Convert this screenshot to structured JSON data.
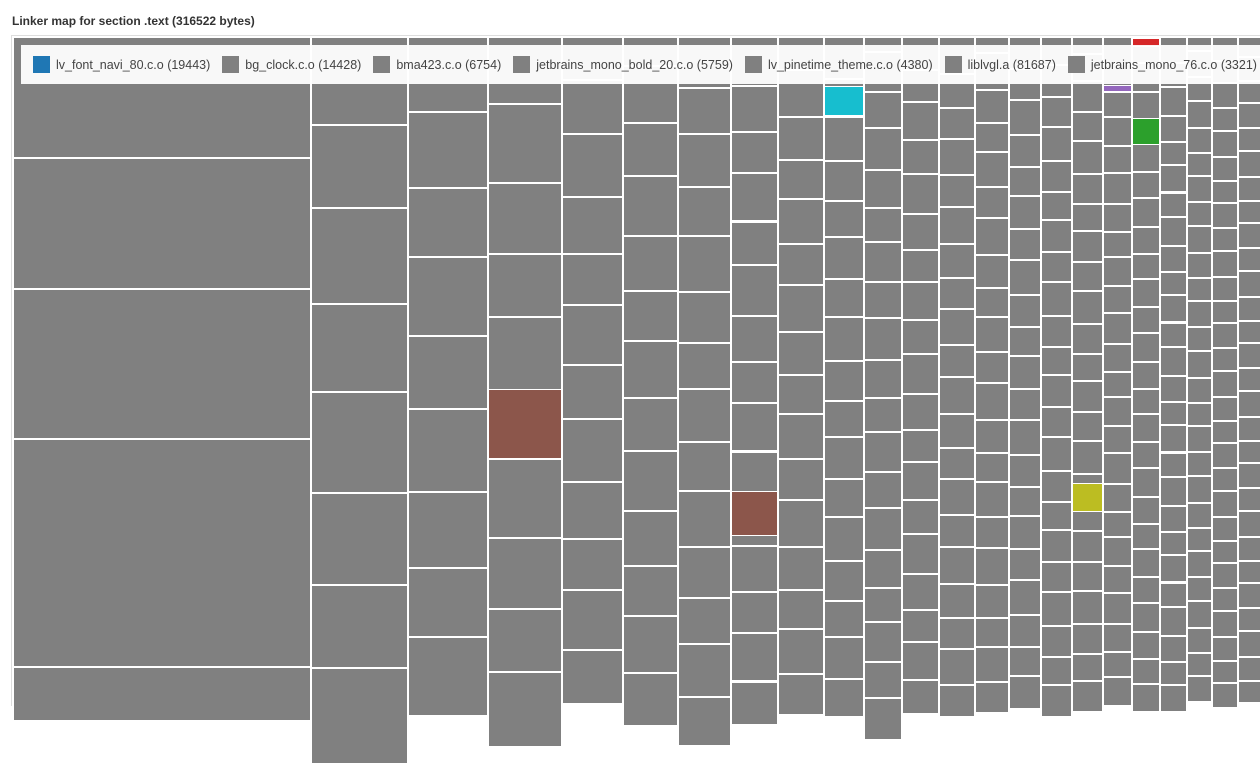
{
  "title": "Linker map for section .text (316522 bytes)",
  "legend": [
    {
      "label": "lv_font_navi_80.c.o (19443)",
      "color": "#1f77b4"
    },
    {
      "label": "bg_clock.c.o (14428)",
      "color": "#808080"
    },
    {
      "label": "bma423.c.o (6754)",
      "color": "#808080"
    },
    {
      "label": "jetbrains_mono_bold_20.c.o (5759)",
      "color": "#808080"
    },
    {
      "label": "lv_pinetime_theme.c.o (4380)",
      "color": "#808080"
    },
    {
      "label": "liblvgl.a (81687)",
      "color": "#808080"
    },
    {
      "label": "jetbrains_mono_76.c.o (3321)",
      "color": "#808080"
    }
  ],
  "colors": {
    "default": "#808080",
    "cyan": "#17becf",
    "brown": "#8c564b",
    "olive": "#bcbd22",
    "green": "#2ca02c",
    "red": "#d62728",
    "purple": "#9467bd"
  }
}
